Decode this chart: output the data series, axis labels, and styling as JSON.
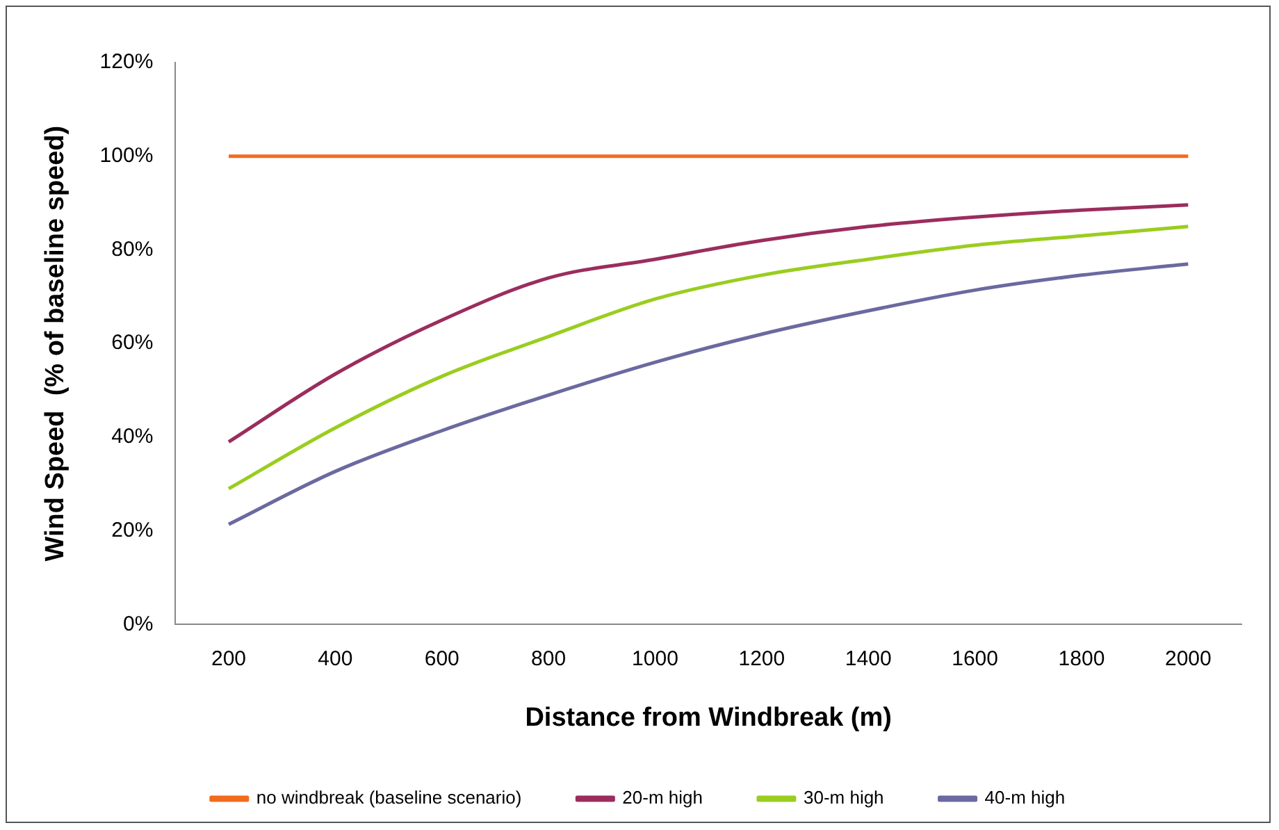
{
  "chart_data": {
    "type": "line",
    "xlabel": "Distance from Windbreak (m)",
    "ylabel": "Wind Speed  (% of baseline speed)",
    "categories": [
      "200",
      "400",
      "600",
      "800",
      "1000",
      "1200",
      "1400",
      "1600",
      "1800",
      "2000"
    ],
    "series": [
      {
        "name": "no windbreak (baseline scenario)",
        "color": "#f26b1d",
        "values": [
          100,
          100,
          100,
          100,
          100,
          100,
          100,
          100,
          100,
          100
        ]
      },
      {
        "name": "20-m high",
        "color": "#9b2d5e",
        "values": [
          39,
          53.5,
          65,
          74,
          78,
          82,
          85,
          87,
          88.5,
          89.6
        ]
      },
      {
        "name": "30-m high",
        "color": "#9acd1f",
        "values": [
          29,
          42,
          53,
          61.5,
          69.5,
          74.6,
          78,
          81,
          83,
          85
        ]
      },
      {
        "name": "40-m high",
        "color": "#6a6aa0",
        "values": [
          21.4,
          32.7,
          41.4,
          49,
          56,
          62,
          67,
          71.4,
          74.6,
          77
        ]
      }
    ],
    "ylim": [
      0,
      120
    ],
    "yticks": [
      {
        "value": 0,
        "label": "0%"
      },
      {
        "value": 20,
        "label": "20%"
      },
      {
        "value": 40,
        "label": "40%"
      },
      {
        "value": 60,
        "label": "60%"
      },
      {
        "value": 80,
        "label": "80%"
      },
      {
        "value": 100,
        "label": "100%"
      },
      {
        "value": 120,
        "label": "120%"
      }
    ],
    "grid": false,
    "legend": "bottom",
    "marker": "none",
    "line_style": "solid"
  }
}
